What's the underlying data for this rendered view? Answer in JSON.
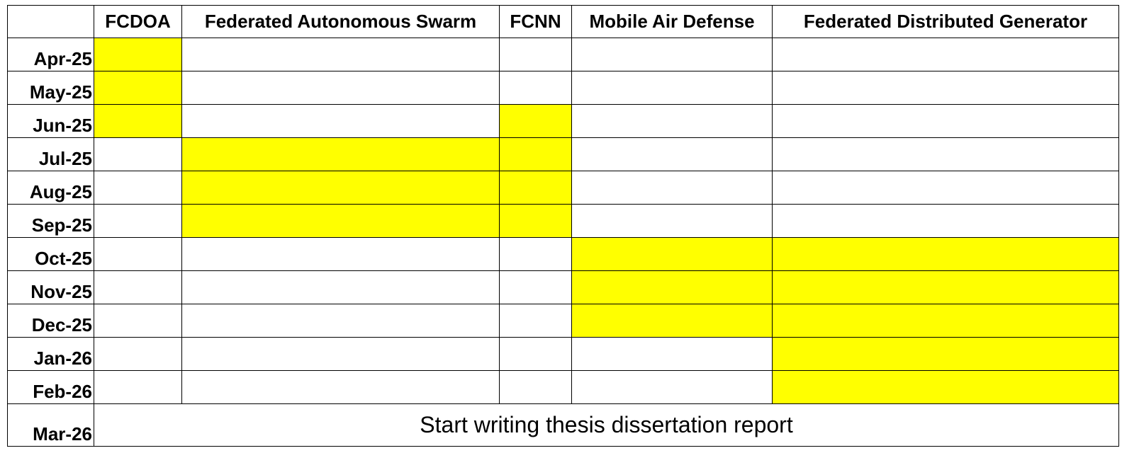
{
  "columns": [
    "FCDOA",
    "Federated Autonomous Swarm",
    "FCNN",
    "Mobile Air Defense",
    "Federated Distributed Generator"
  ],
  "rows": [
    {
      "month": "Apr-25",
      "active": [
        true,
        false,
        false,
        false,
        false
      ]
    },
    {
      "month": "May-25",
      "active": [
        true,
        false,
        false,
        false,
        false
      ]
    },
    {
      "month": "Jun-25",
      "active": [
        true,
        false,
        true,
        false,
        false
      ]
    },
    {
      "month": "Jul-25",
      "active": [
        false,
        true,
        true,
        false,
        false
      ]
    },
    {
      "month": "Aug-25",
      "active": [
        false,
        true,
        true,
        false,
        false
      ]
    },
    {
      "month": "Sep-25",
      "active": [
        false,
        true,
        true,
        false,
        false
      ]
    },
    {
      "month": "Oct-25",
      "active": [
        false,
        false,
        false,
        true,
        true
      ]
    },
    {
      "month": "Nov-25",
      "active": [
        false,
        false,
        false,
        true,
        true
      ]
    },
    {
      "month": "Dec-25",
      "active": [
        false,
        false,
        false,
        true,
        true
      ]
    },
    {
      "month": "Jan-26",
      "active": [
        false,
        false,
        false,
        false,
        true
      ]
    },
    {
      "month": "Feb-26",
      "active": [
        false,
        false,
        false,
        false,
        true
      ]
    }
  ],
  "final_row": {
    "month": "Mar-26",
    "note": "Start writing thesis dissertation report"
  },
  "colors": {
    "highlight": "#ffff00",
    "border": "#000000",
    "background": "#ffffff"
  }
}
